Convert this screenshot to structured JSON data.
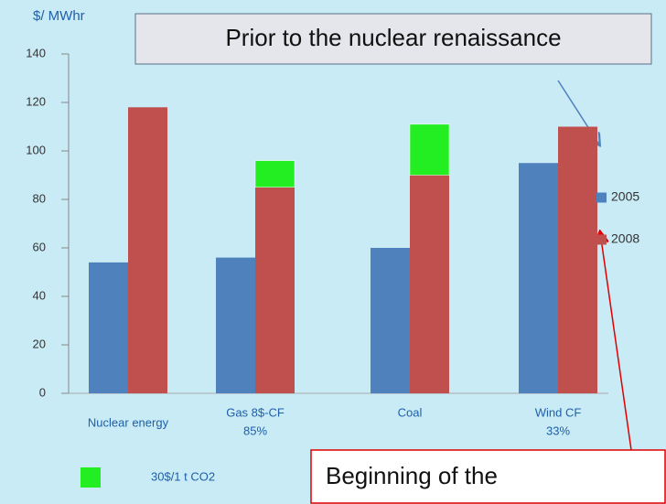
{
  "chart_data": {
    "type": "bar",
    "stacked": true,
    "y_label": "$/ MWhr",
    "categories": [
      [
        "Nuclear energy"
      ],
      [
        "Gas 8$-CF",
        "85%"
      ],
      [
        "Coal"
      ],
      [
        "Wind CF",
        "33%"
      ]
    ],
    "series": [
      {
        "name": "2005",
        "color": "#4f81bd",
        "values": [
          54,
          56,
          60,
          95
        ],
        "stack": "a"
      },
      {
        "name": "2008",
        "color": "#c0504d",
        "values": [
          118,
          85,
          90,
          110
        ],
        "stack": "b"
      },
      {
        "name": "30$/1 t CO2",
        "color": "#22ee22",
        "values": [
          null,
          11,
          21,
          null
        ],
        "stack": "b"
      }
    ],
    "ylim": [
      0,
      140
    ],
    "yticks": [
      0,
      20,
      40,
      60,
      80,
      100,
      120,
      140
    ],
    "grid": false,
    "annotations": [
      "Prior to the nuclear renaissance",
      "Beginning of the"
    ]
  }
}
